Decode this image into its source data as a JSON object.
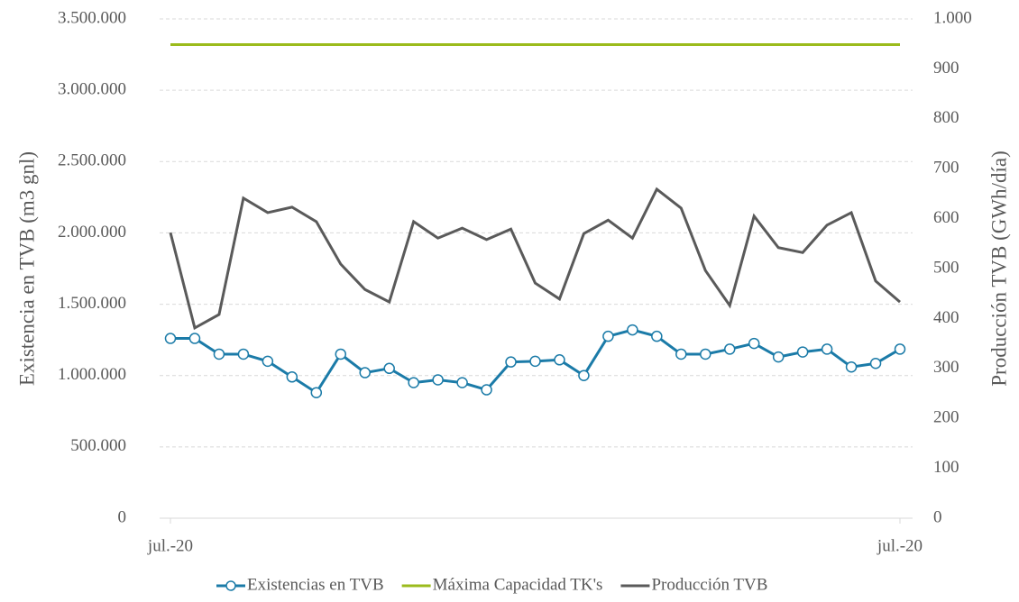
{
  "chart_data": {
    "type": "line",
    "categories": [
      "jul.-20",
      null,
      null,
      null,
      null,
      null,
      null,
      null,
      null,
      null,
      null,
      null,
      null,
      null,
      null,
      null,
      null,
      null,
      null,
      null,
      null,
      null,
      null,
      null,
      null,
      null,
      null,
      null,
      null,
      null,
      "jul.-20"
    ],
    "y_label": "Existencia en TVB (m3 gnl)",
    "y2_label": "Producción TVB (GWh/día)",
    "ylim": [
      0,
      3500000
    ],
    "yticks": [
      0,
      {
        "value": 500000,
        "label": "500.000"
      },
      {
        "value": 1000000,
        "label": "1.000.000"
      },
      {
        "value": 1500000,
        "label": "1.500.000"
      },
      {
        "value": 2000000,
        "label": "2.000.000"
      },
      {
        "value": 2500000,
        "label": "2.500.000"
      },
      {
        "value": 3000000,
        "label": "3.000.000"
      },
      {
        "value": 3500000,
        "label": "3.500.000"
      }
    ],
    "y2lim": [
      0,
      1000
    ],
    "y2ticks": [
      0,
      100,
      200,
      300,
      400,
      500,
      600,
      700,
      800,
      900,
      {
        "value": 1000,
        "label": "1.000"
      }
    ],
    "grid": true,
    "legend": "bottom",
    "series": [
      {
        "name": "Existencias en TVB",
        "color": "#1b7ba8",
        "marker": true,
        "values": [
          1260000,
          1260000,
          1150000,
          1150000,
          1100000,
          990000,
          880000,
          1150000,
          1020000,
          1050000,
          950000,
          970000,
          950000,
          900000,
          1095000,
          1100000,
          1110000,
          1000000,
          1275000,
          1320000,
          1275000,
          1150000,
          1150000,
          1185000,
          1225000,
          1130000,
          1165000,
          1185000,
          1060000,
          1085000,
          1185000
        ]
      },
      {
        "name": "Máxima Capacidad TK's",
        "color": "#9bbb1c",
        "values": [
          3320000,
          3320000,
          3320000,
          3320000,
          3320000,
          3320000,
          3320000,
          3320000,
          3320000,
          3320000,
          3320000,
          3320000,
          3320000,
          3320000,
          3320000,
          3320000,
          3320000,
          3320000,
          3320000,
          3320000,
          3320000,
          3320000,
          3320000,
          3320000,
          3320000,
          3320000,
          3320000,
          3320000,
          3320000,
          3320000,
          3320000
        ]
      },
      {
        "name": "Producción TVB",
        "color": "#5a5a5a",
        "axis": "y2",
        "values": [
          572,
          381,
          408,
          641,
          612,
          623,
          594,
          509,
          458,
          433,
          594,
          561,
          581,
          558,
          579,
          471,
          439,
          570,
          597,
          561,
          659,
          621,
          496,
          426,
          605,
          542,
          532,
          587,
          612,
          475,
          433
        ]
      }
    ]
  }
}
